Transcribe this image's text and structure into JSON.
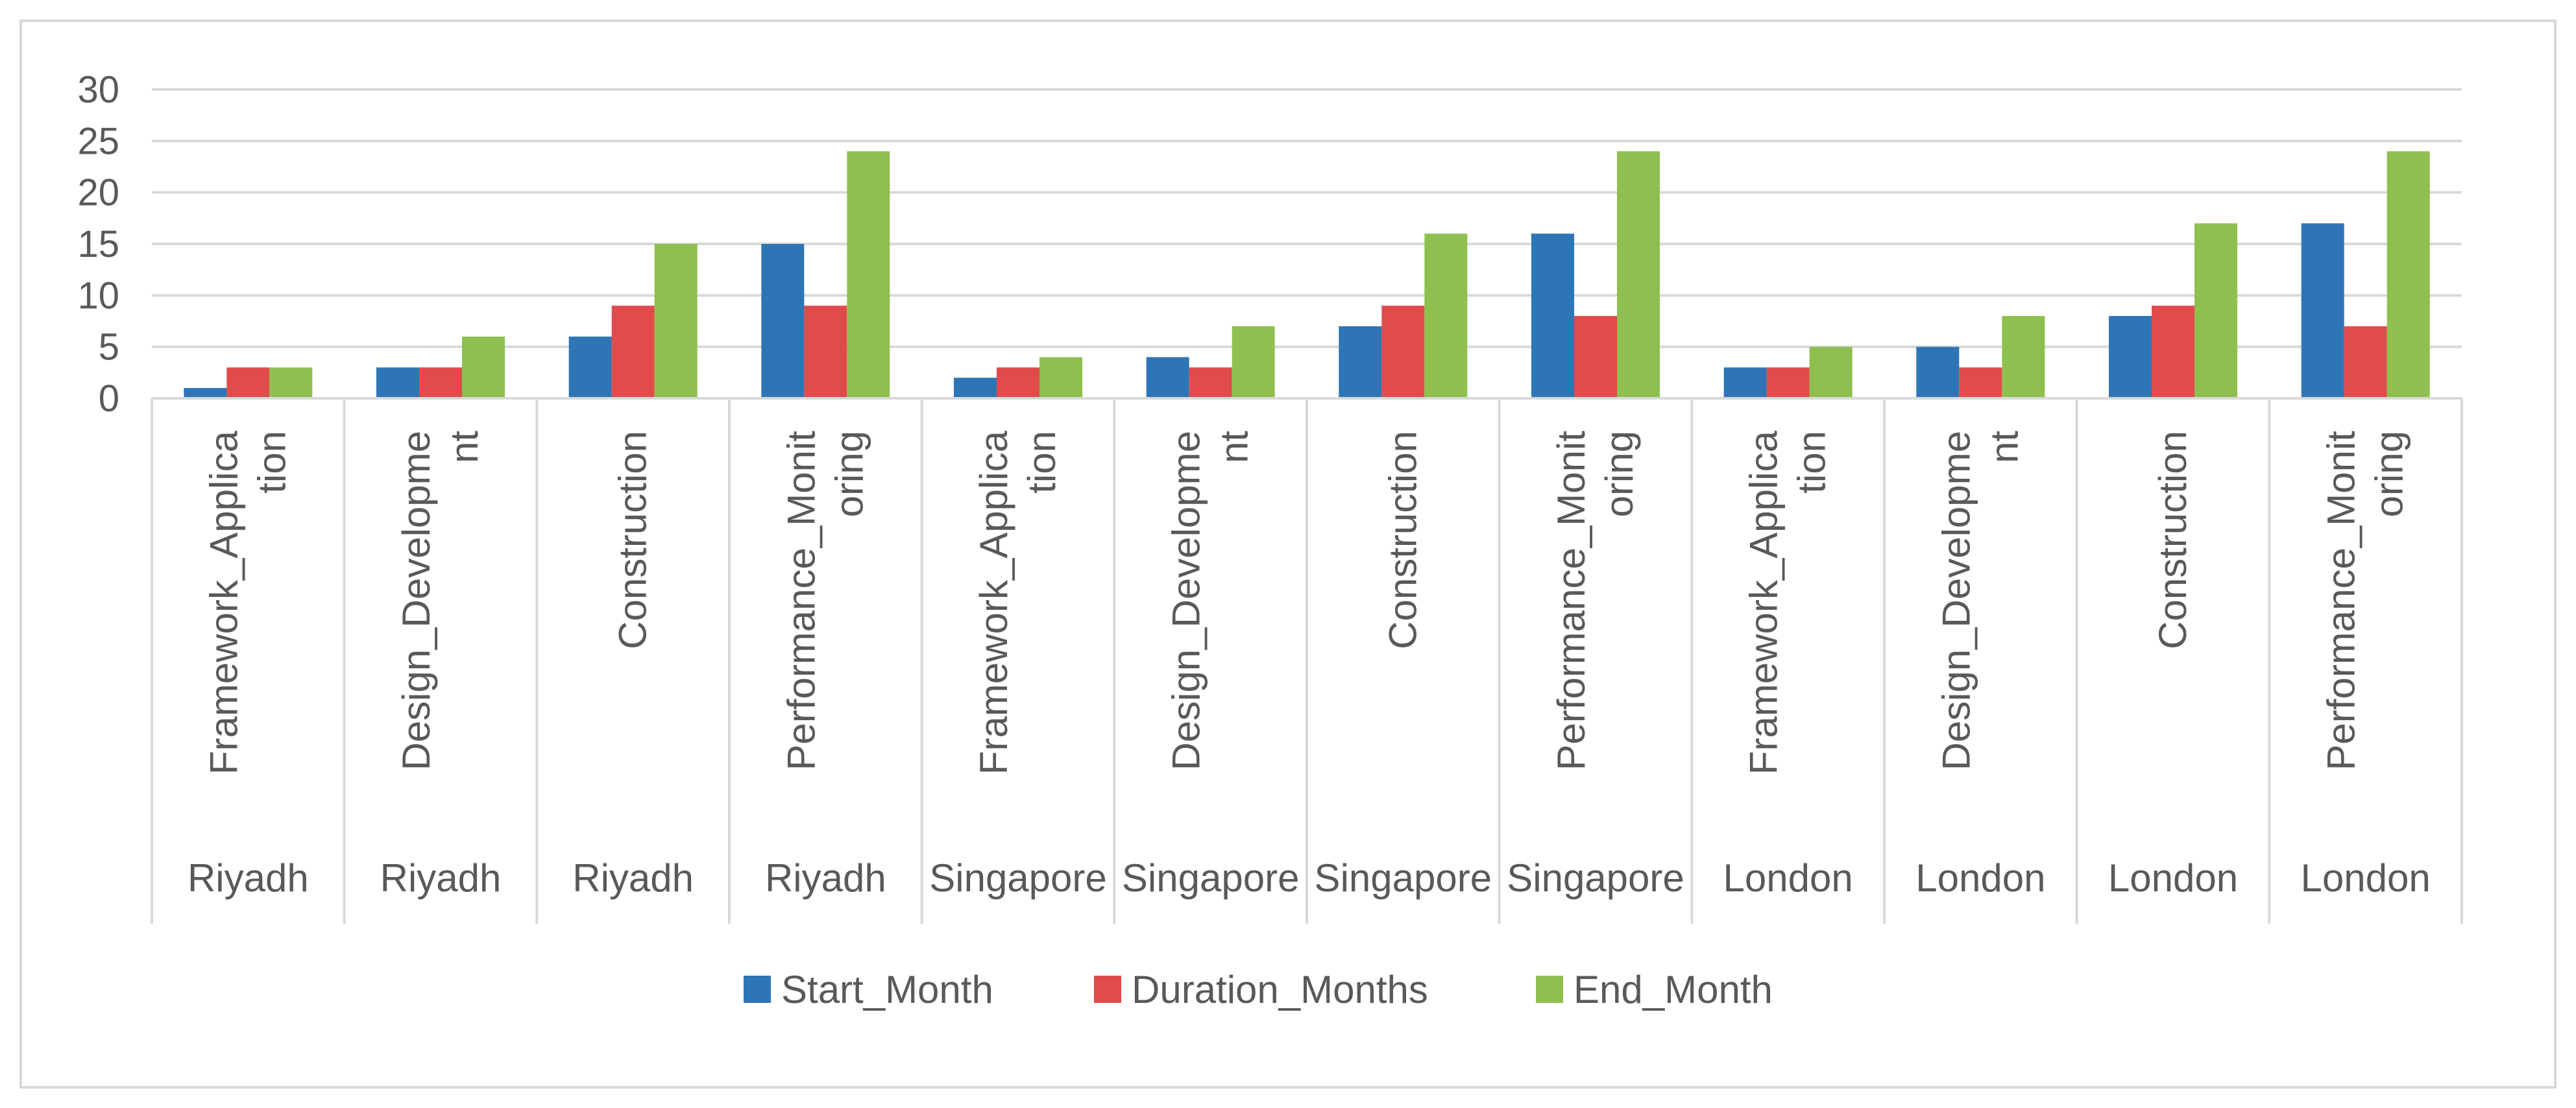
{
  "chart_data": {
    "type": "bar",
    "title": "",
    "xlabel": "",
    "ylabel": "",
    "ylim": [
      0,
      30
    ],
    "yticks": [
      0,
      5,
      10,
      15,
      20,
      25,
      30
    ],
    "grid": true,
    "legend_position": "bottom",
    "categories": [
      [
        "Framework_Applica",
        "tion"
      ],
      [
        "Design_Developme",
        "nt"
      ],
      [
        "Construction"
      ],
      [
        "Performance_Monit",
        "oring"
      ],
      [
        "Framework_Applica",
        "tion"
      ],
      [
        "Design_Developme",
        "nt"
      ],
      [
        "Construction"
      ],
      [
        "Performance_Monit",
        "oring"
      ],
      [
        "Framework_Applica",
        "tion"
      ],
      [
        "Design_Developme",
        "nt"
      ],
      [
        "Construction"
      ],
      [
        "Performance_Monit",
        "oring"
      ]
    ],
    "groups": [
      "Riyadh",
      "Riyadh",
      "Riyadh",
      "Riyadh",
      "Singapore",
      "Singapore",
      "Singapore",
      "Singapore",
      "London",
      "London",
      "London",
      "London"
    ],
    "series": [
      {
        "name": "Start_Month",
        "color": "#2e75b6",
        "values": [
          1,
          3,
          6,
          15,
          2,
          4,
          7,
          16,
          3,
          5,
          8,
          17
        ]
      },
      {
        "name": "Duration_Months",
        "color": "#e04b4b",
        "values": [
          3,
          3,
          9,
          9,
          3,
          3,
          9,
          8,
          3,
          3,
          9,
          7
        ]
      },
      {
        "name": "End_Month",
        "color": "#8fbf4f",
        "values": [
          3,
          6,
          15,
          24,
          4,
          7,
          16,
          24,
          5,
          8,
          17,
          24
        ]
      }
    ]
  }
}
